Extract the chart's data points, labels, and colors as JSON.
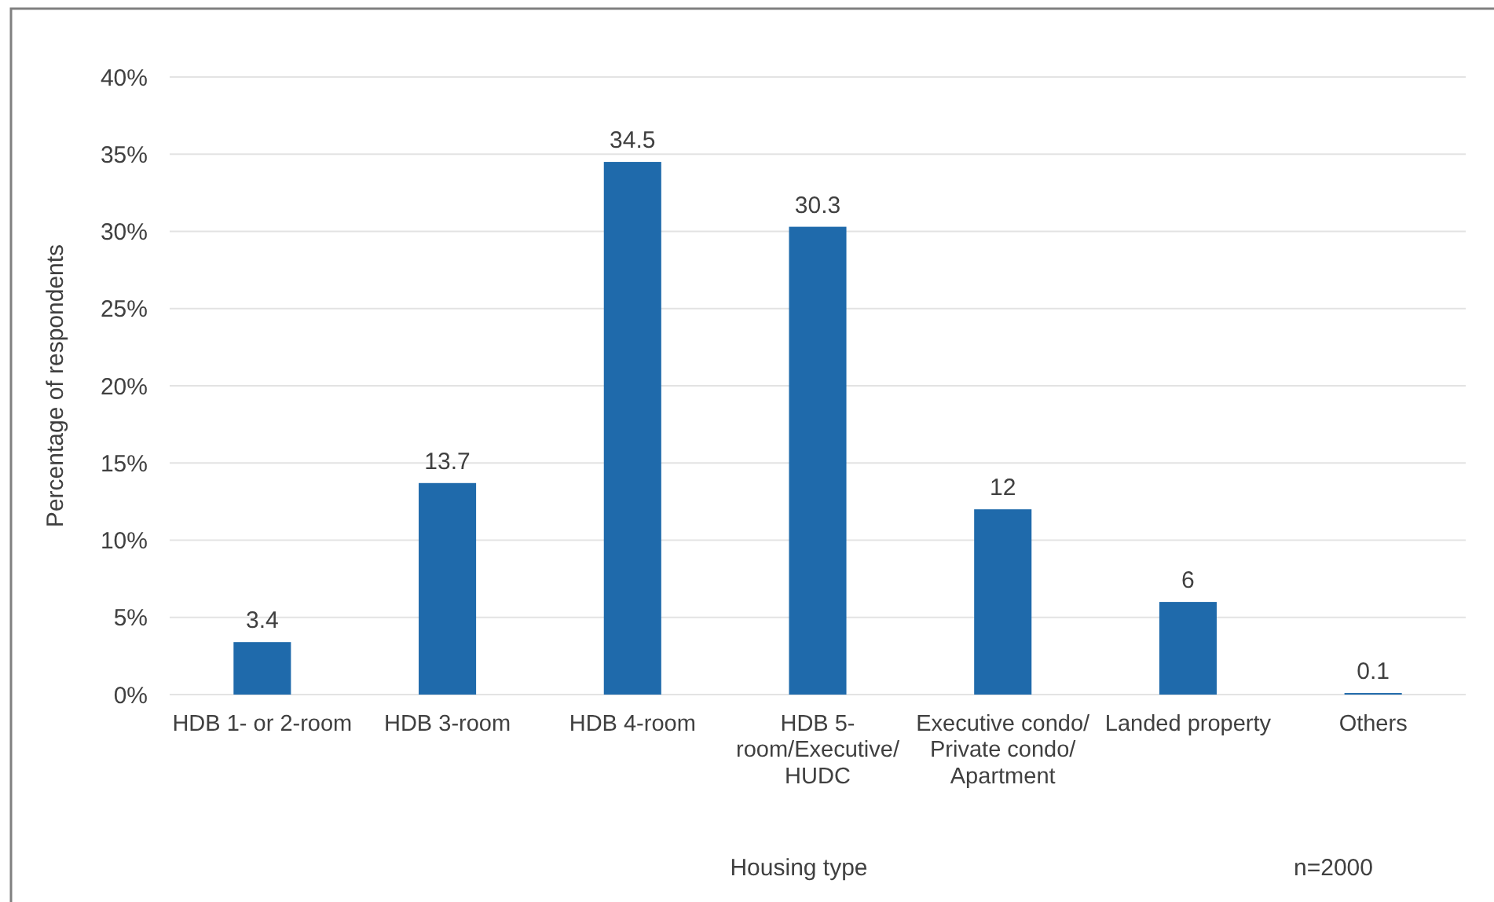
{
  "chart_data": {
    "type": "bar",
    "categories": [
      "HDB 1- or 2-room",
      "HDB 3-room",
      "HDB 4-room",
      "HDB 5-room/Executive/HUDC",
      "Executive condo/ Private condo/ Apartment",
      "Landed property",
      "Others"
    ],
    "values": [
      3.4,
      13.7,
      34.5,
      30.3,
      12,
      6,
      0.1
    ],
    "color": "#1f6aab",
    "ylim": [
      0,
      40
    ],
    "yticks": [
      {
        "value": 0,
        "label": "0%"
      },
      {
        "value": 5,
        "label": "5%"
      },
      {
        "value": 10,
        "label": "10%"
      },
      {
        "value": 15,
        "label": "15%"
      },
      {
        "value": 20,
        "label": "20%"
      },
      {
        "value": 25,
        "label": "25%"
      },
      {
        "value": 30,
        "label": "30%"
      },
      {
        "value": 35,
        "label": "35%"
      },
      {
        "value": 40,
        "label": "40%"
      }
    ],
    "grid": "y",
    "data_labels": true,
    "xlabel": "Housing type",
    "ylabel": "Percentage of respondents",
    "annotations": [
      "n=2000"
    ]
  }
}
